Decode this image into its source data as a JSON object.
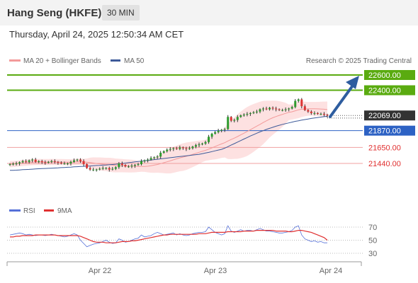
{
  "header": {
    "title": "Hang Seng (HKFE)",
    "timeframe": "30 MIN"
  },
  "date_line": "Thursday, April 24, 2025 12:50:34 AM CET",
  "credit": "Research © 2025 Trading Central",
  "colors": {
    "green": "#5aab10",
    "blue": "#2d62c4",
    "red": "#e03030",
    "current_box": "#333333",
    "ma20": "#f39a9a",
    "ma50": "#3d5a99",
    "band": "#fde1e1",
    "arrow": "#2e5d9f",
    "rsi": "#5570d8"
  },
  "chart_data": [
    {
      "type": "candlestick",
      "legend": [
        {
          "name": "MA 20 + Bollinger Bands",
          "color": "#f39a9a"
        },
        {
          "name": "MA 50",
          "color": "#3d5a99"
        }
      ],
      "x_labels": [
        "Apr 22",
        "Apr 23",
        "Apr 24"
      ],
      "ylim": [
        21280,
        22680
      ],
      "price_levels": [
        {
          "value": 22600,
          "label": "22600.00",
          "kind": "resistance"
        },
        {
          "value": 22400,
          "label": "22400.00",
          "kind": "resistance"
        },
        {
          "value": 22069,
          "label": "22069.00",
          "kind": "current"
        },
        {
          "value": 21870,
          "label": "21870.00",
          "kind": "pivot"
        },
        {
          "value": 21650,
          "label": "21650.00",
          "kind": "support"
        },
        {
          "value": 21440,
          "label": "21440.00",
          "kind": "support"
        }
      ],
      "close": [
        21430,
        21435,
        21440,
        21455,
        21470,
        21460,
        21480,
        21490,
        21460,
        21470,
        21455,
        21450,
        21460,
        21470,
        21460,
        21450,
        21440,
        21440,
        21440,
        21460,
        21480,
        21490,
        21470,
        21430,
        21380,
        21360,
        21360,
        21360,
        21370,
        21380,
        21380,
        21360,
        21370,
        21390,
        21440,
        21420,
        21400,
        21400,
        21410,
        21420,
        21430,
        21470,
        21480,
        21490,
        21510,
        21520,
        21530,
        21580,
        21600,
        21620,
        21630,
        21640,
        21630,
        21650,
        21640,
        21630,
        21640,
        21660,
        21680,
        21690,
        21700,
        21720,
        21790,
        21830,
        21850,
        21870,
        21880,
        21890,
        22050,
        22000,
        22010,
        22050,
        22070,
        22080,
        22090,
        22100,
        22110,
        22120,
        22150,
        22160,
        22150,
        22170,
        22160,
        22150,
        22140,
        22140,
        22150,
        22160,
        22180,
        22260,
        22280,
        22190,
        22140,
        22120,
        22100,
        22100,
        22090,
        22090,
        22080,
        22069
      ],
      "ma50": [
        21350,
        21350,
        21352,
        21355,
        21358,
        21360,
        21362,
        21365,
        21368,
        21370,
        21372,
        21374,
        21376,
        21378,
        21380,
        21382,
        21385,
        21387,
        21390,
        21392,
        21395,
        21397,
        21400,
        21402,
        21405,
        21407,
        21410,
        21413,
        21415,
        21418,
        21420,
        21423,
        21426,
        21430,
        21435,
        21440,
        21445,
        21450,
        21455,
        21460,
        21465,
        21470,
        21475,
        21480,
        21485,
        21490,
        21495,
        21500,
        21505,
        21510,
        21515,
        21520,
        21525,
        21530,
        21535,
        21540,
        21545,
        21550,
        21555,
        21560,
        21568,
        21576,
        21585,
        21595,
        21605,
        21615,
        21625,
        21640,
        21660,
        21680,
        21700,
        21720,
        21740,
        21760,
        21780,
        21800,
        21818,
        21836,
        21854,
        21870,
        21886,
        21900,
        21914,
        21928,
        21940,
        21952,
        21962,
        21972,
        21982,
        21992,
        22000,
        22008,
        22015,
        22022,
        22030,
        22036,
        22042,
        22048,
        22053,
        22058
      ],
      "rsi_legend": [
        {
          "name": "RSI",
          "color": "#5570d8"
        },
        {
          "name": "9MA",
          "color": "#e03030"
        }
      ],
      "rsi_levels": [
        "70",
        "50",
        "30"
      ],
      "rsi_ylim": [
        20,
        80
      ],
      "rsi": [
        58,
        59,
        60,
        61,
        60,
        58,
        59,
        58,
        57,
        58,
        58,
        57,
        58,
        59,
        58,
        57,
        56,
        55,
        56,
        58,
        60,
        58,
        50,
        45,
        40,
        42,
        44,
        45,
        46,
        48,
        50,
        47,
        45,
        46,
        52,
        50,
        47,
        48,
        50,
        52,
        53,
        58,
        55,
        56,
        57,
        60,
        62,
        60,
        58,
        59,
        60,
        61,
        58,
        60,
        58,
        57,
        58,
        60,
        61,
        62,
        62,
        63,
        70,
        66,
        62,
        60,
        58,
        60,
        72,
        64,
        62,
        64,
        66,
        64,
        65,
        65,
        64,
        66,
        68,
        66,
        64,
        64,
        63,
        62,
        61,
        61,
        62,
        63,
        65,
        70,
        72,
        58,
        52,
        50,
        48,
        49,
        47,
        48,
        46,
        46
      ],
      "rsi_ma": [
        55,
        55,
        56,
        56,
        57,
        57,
        57,
        57,
        58,
        58,
        58,
        58,
        58,
        58,
        58,
        57,
        57,
        57,
        57,
        57,
        57,
        57,
        56,
        54,
        52,
        50,
        48,
        47,
        47,
        47,
        46,
        46,
        46,
        46,
        47,
        48,
        48,
        48,
        49,
        49,
        50,
        51,
        52,
        53,
        54,
        55,
        56,
        57,
        58,
        58,
        59,
        59,
        59,
        59,
        59,
        59,
        59,
        59,
        59,
        60,
        60,
        60,
        61,
        62,
        62,
        62,
        62,
        62,
        63,
        63,
        63,
        63,
        63,
        64,
        64,
        64,
        64,
        65,
        65,
        65,
        65,
        65,
        65,
        64,
        64,
        64,
        64,
        63,
        63,
        64,
        65,
        65,
        64,
        63,
        62,
        60,
        58,
        56,
        54,
        50
      ]
    }
  ]
}
